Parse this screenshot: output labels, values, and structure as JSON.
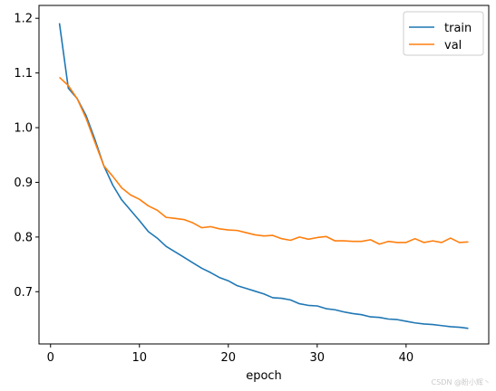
{
  "chart_data": {
    "type": "line",
    "title": "",
    "xlabel": "epoch",
    "ylabel": "",
    "xlim": [
      -1.3,
      49.3
    ],
    "ylim": [
      0.6045,
      1.2235
    ],
    "xticks": [
      0,
      10,
      20,
      30,
      40
    ],
    "xtick_labels": [
      "0",
      "10",
      "20",
      "30",
      "40"
    ],
    "yticks": [
      0.7,
      0.8,
      0.9,
      1.0,
      1.1,
      1.2
    ],
    "ytick_labels": [
      "0.7",
      "0.8",
      "0.9",
      "1.0",
      "1.1",
      "1.2"
    ],
    "grid": false,
    "legend_position": "top-right",
    "x": [
      1,
      2,
      3,
      4,
      5,
      6,
      7,
      8,
      9,
      10,
      11,
      12,
      13,
      14,
      15,
      16,
      17,
      18,
      19,
      20,
      21,
      22,
      23,
      24,
      25,
      26,
      27,
      28,
      29,
      30,
      31,
      32,
      33,
      34,
      35,
      36,
      37,
      38,
      39,
      40,
      41,
      42,
      43,
      44,
      45,
      46,
      47
    ],
    "series": [
      {
        "name": "train",
        "color": "#1f77b4",
        "values": [
          1.191,
          1.072,
          1.053,
          1.022,
          0.978,
          0.93,
          0.895,
          0.868,
          0.849,
          0.83,
          0.81,
          0.798,
          0.783,
          0.773,
          0.763,
          0.753,
          0.743,
          0.735,
          0.726,
          0.72,
          0.711,
          0.706,
          0.701,
          0.696,
          0.689,
          0.688,
          0.685,
          0.678,
          0.675,
          0.674,
          0.669,
          0.667,
          0.663,
          0.66,
          0.658,
          0.654,
          0.653,
          0.65,
          0.649,
          0.646,
          0.643,
          0.641,
          0.64,
          0.638,
          0.636,
          0.635,
          0.633
        ]
      },
      {
        "name": "val",
        "color": "#ff7f0e",
        "values": [
          1.092,
          1.077,
          1.053,
          1.017,
          0.973,
          0.93,
          0.911,
          0.89,
          0.877,
          0.869,
          0.857,
          0.849,
          0.836,
          0.834,
          0.832,
          0.826,
          0.817,
          0.819,
          0.815,
          0.813,
          0.812,
          0.808,
          0.804,
          0.802,
          0.803,
          0.797,
          0.794,
          0.8,
          0.796,
          0.799,
          0.801,
          0.793,
          0.793,
          0.792,
          0.792,
          0.795,
          0.787,
          0.792,
          0.79,
          0.79,
          0.797,
          0.79,
          0.793,
          0.79,
          0.798,
          0.79,
          0.791
        ]
      }
    ]
  },
  "watermark": "CSDN @盼小辉丶"
}
